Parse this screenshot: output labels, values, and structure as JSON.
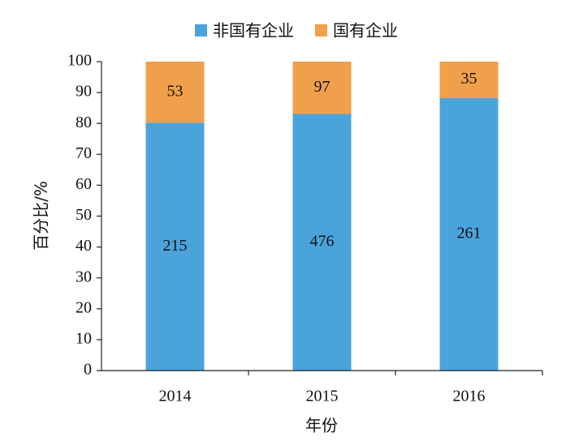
{
  "chart_data": {
    "type": "bar",
    "stacked": "percent",
    "categories": [
      "2014",
      "2015",
      "2016"
    ],
    "series": [
      {
        "name": "非国有企业",
        "color": "#4ba3dc",
        "values": [
          215,
          476,
          261
        ]
      },
      {
        "name": "国有企业",
        "color": "#f0a04b",
        "values": [
          53,
          97,
          35
        ]
      }
    ],
    "xlabel": "年份",
    "ylabel": "百分比/%",
    "ylim": [
      0,
      100
    ],
    "yticks": [
      0,
      10,
      20,
      30,
      40,
      50,
      60,
      70,
      80,
      90,
      100
    ],
    "legend": "top",
    "grid": false
  }
}
